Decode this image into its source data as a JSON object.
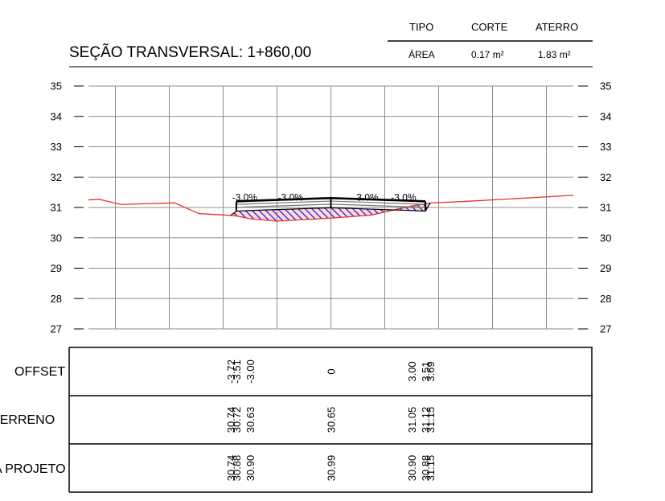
{
  "title": "SEÇÃO TRANSVERSAL: 1+860,00",
  "summary": {
    "headers": [
      "TIPO",
      "CORTE",
      "ATERRO"
    ],
    "row_label": "ÁREA",
    "corte": "0.17 m²",
    "aterro": "1.83 m²"
  },
  "colors": {
    "terrain": "#e8342c",
    "hatch": "#1e1ee0",
    "hatch_fill": "#ff2a2a",
    "grid": "#8c8c8c",
    "project": "#000000"
  },
  "chart_data": {
    "type": "line",
    "title": "SEÇÃO TRANSVERSAL: 1+860,00",
    "xlim": [
      -9.0,
      9.0
    ],
    "ylim": [
      27,
      35
    ],
    "y_ticks": [
      27,
      28,
      29,
      30,
      31,
      32,
      33,
      34,
      35
    ],
    "grid": true,
    "series": [
      {
        "name": "terrain",
        "points": [
          [
            -9.0,
            31.25
          ],
          [
            -8.6,
            31.27
          ],
          [
            -7.8,
            31.1
          ],
          [
            -5.8,
            31.15
          ],
          [
            -4.9,
            30.8
          ],
          [
            -3.72,
            30.74
          ],
          [
            -3.51,
            30.72
          ],
          [
            -3.0,
            30.63
          ],
          [
            -2.0,
            30.55
          ],
          [
            0.0,
            30.65
          ],
          [
            1.5,
            30.75
          ],
          [
            3.0,
            31.05
          ],
          [
            3.51,
            31.12
          ],
          [
            3.69,
            31.15
          ],
          [
            5.0,
            31.2
          ],
          [
            9.0,
            31.4
          ]
        ]
      },
      {
        "name": "project",
        "points": [
          [
            -3.72,
            30.74
          ],
          [
            -3.51,
            30.88
          ],
          [
            -3.0,
            30.9
          ],
          [
            0.0,
            30.99
          ],
          [
            3.0,
            30.9
          ],
          [
            3.51,
            30.88
          ],
          [
            3.69,
            31.15
          ]
        ]
      }
    ],
    "slope_labels": [
      {
        "x": -3.2,
        "y": 31.15,
        "text": "-3.0%"
      },
      {
        "x": -1.5,
        "y": 31.15,
        "text": "-3.0%"
      },
      {
        "x": 1.3,
        "y": 31.15,
        "text": "-3.0%"
      },
      {
        "x": 2.7,
        "y": 31.15,
        "text": "-3.0%"
      }
    ]
  },
  "table": {
    "row_labels": [
      "OFFSET",
      "TERRENO",
      "PROJETO"
    ],
    "columns": [
      {
        "offset": -3.72,
        "offset_label": "-3.72",
        "terreno": "30.74",
        "projeto": "30.74"
      },
      {
        "offset": -3.51,
        "offset_label": "-3.51",
        "terreno": "30.72",
        "projeto": "30.88"
      },
      {
        "offset": -3.0,
        "offset_label": "-3.00",
        "terreno": "30.63",
        "projeto": "30.90"
      },
      {
        "offset": 0.0,
        "offset_label": "0",
        "terreno": "30.65",
        "projeto": "30.99"
      },
      {
        "offset": 3.0,
        "offset_label": "3.00",
        "terreno": "31.05",
        "projeto": "30.90"
      },
      {
        "offset": 3.51,
        "offset_label": "3.51",
        "terreno": "31.12",
        "projeto": "30.88"
      },
      {
        "offset": 3.69,
        "offset_label": "3.69",
        "terreno": "31.15",
        "projeto": "31.15"
      }
    ]
  }
}
